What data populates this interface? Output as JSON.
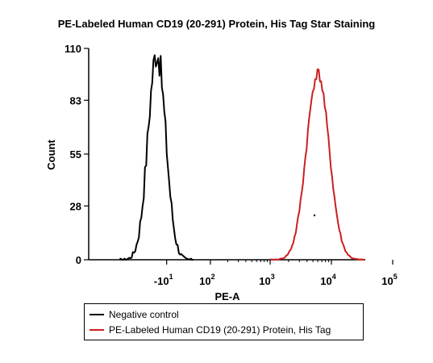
{
  "chart_data": {
    "type": "line",
    "title": "PE-Labeled Human CD19 (20-291) Protein, His Tag Star Staining",
    "xlabel": "PE-A",
    "ylabel": "Count",
    "x_scale": "biexponential",
    "y_ticks": [
      0,
      28,
      55,
      83,
      110
    ],
    "ylim": [
      0,
      110
    ],
    "x_tick_labels": [
      {
        "base": "-10",
        "exp": "1",
        "value": -10
      },
      {
        "base": "10",
        "exp": "2",
        "value": 100
      },
      {
        "base": "10",
        "exp": "3",
        "value": 1000
      },
      {
        "base": "10",
        "exp": "4",
        "value": 10000
      },
      {
        "base": "10",
        "exp": "5",
        "value": 100000
      }
    ],
    "series": [
      {
        "name": "Negative control",
        "color": "#000000",
        "shape": "histogram",
        "peak_x": -30,
        "peak_count": 108
      },
      {
        "name": "PE-Labeled Human CD19 (20-291) Protein, His Tag",
        "color": "#cc1f1f",
        "shape": "histogram",
        "peak_x": 6000,
        "peak_count": 97
      }
    ],
    "legend_position": "bottom",
    "grid": false
  }
}
